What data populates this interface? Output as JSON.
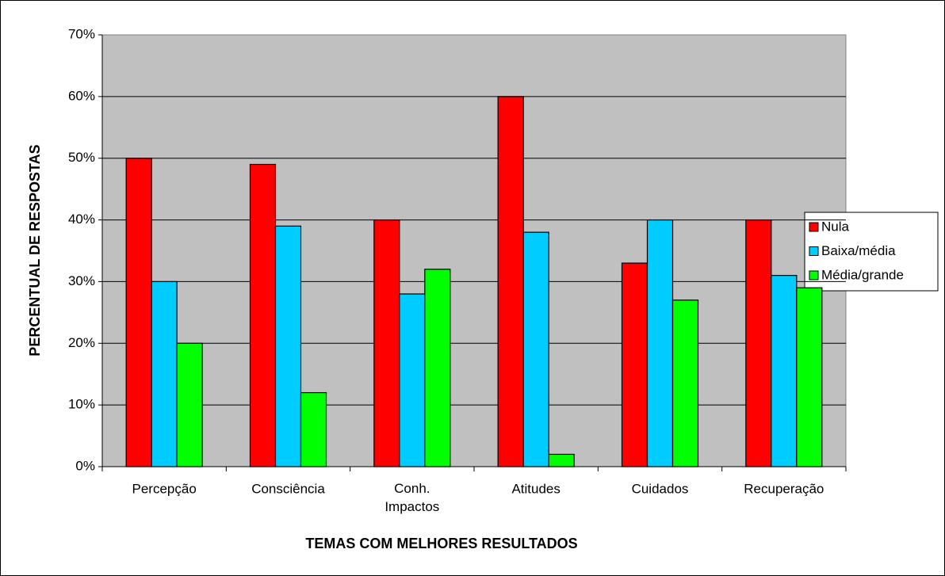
{
  "chart_data": {
    "type": "bar",
    "categories": [
      "Percepção",
      "Consciência",
      "Conh. Impactos",
      "Atitudes",
      "Cuidados",
      "Recuperação"
    ],
    "series": [
      {
        "name": "Nula",
        "color": "#ff0000",
        "values": [
          50,
          49,
          40,
          60,
          33,
          40
        ]
      },
      {
        "name": "Baixa/média",
        "color": "#00ccff",
        "values": [
          30,
          39,
          28,
          38,
          40,
          31
        ]
      },
      {
        "name": "Média/grande",
        "color": "#00ff00",
        "values": [
          20,
          12,
          32,
          2,
          27,
          29
        ]
      }
    ],
    "x_label": "TEMAS COM MELHORES RESULTADOS",
    "y_label": "PERCENTUAL DE RESPOSTAS",
    "ylim": [
      0,
      70
    ],
    "yticks": [
      {
        "value": 0,
        "label": "0%"
      },
      {
        "value": 10,
        "label": "10%"
      },
      {
        "value": 20,
        "label": "20%"
      },
      {
        "value": 30,
        "label": "30%"
      },
      {
        "value": 40,
        "label": "40%"
      },
      {
        "value": 50,
        "label": "50%"
      },
      {
        "value": 60,
        "label": "60%"
      },
      {
        "value": 70,
        "label": "70%"
      }
    ],
    "grid": true,
    "legend": "right"
  }
}
